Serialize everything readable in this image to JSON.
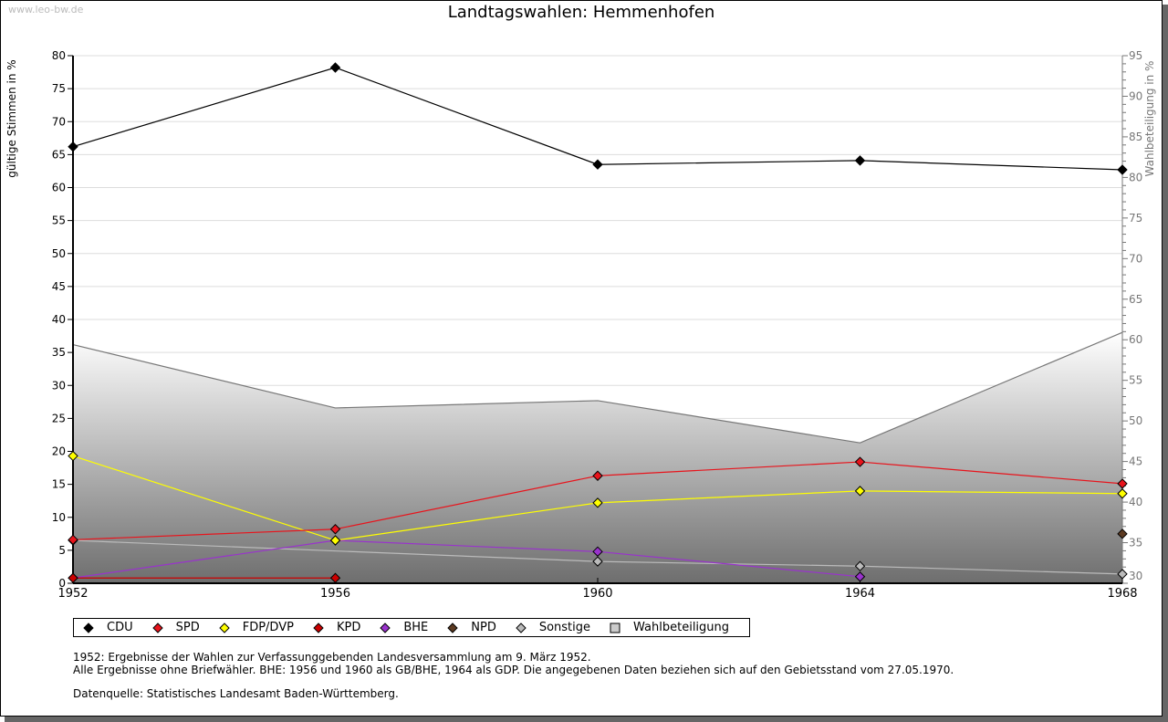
{
  "watermark": "www.leo-bw.de",
  "colors": {
    "CDU": "#000000",
    "SPD": "#e8141c",
    "FDP/DVP": "#ffff00",
    "KPD": "#cc0000",
    "BHE": "#9933cc",
    "NPD": "#5c3a21",
    "Sonstige": "#bbbbbb",
    "Wahlbeteiligung": "#cccccc"
  },
  "chart_data": {
    "type": "line",
    "title": "Landtagswahlen: Hemmenhofen",
    "ylabel": "gültige Stimmen in %",
    "y2label": "Wahlbeteiligung in %",
    "x": [
      1952,
      1956,
      1960,
      1964,
      1968
    ],
    "xticks": [
      "1952",
      "1956",
      "1960",
      "1964",
      "1968"
    ],
    "ylim": [
      0,
      80
    ],
    "yticks": [
      "0",
      "5",
      "10",
      "15",
      "20",
      "25",
      "30",
      "35",
      "40",
      "45",
      "50",
      "55",
      "60",
      "65",
      "70",
      "75",
      "80"
    ],
    "y2lim": [
      30,
      95
    ],
    "y2ticks": [
      "30",
      "35",
      "40",
      "45",
      "50",
      "55",
      "60",
      "65",
      "70",
      "75",
      "80",
      "85",
      "90",
      "95"
    ],
    "grid": true,
    "legend_position": "bottom-left",
    "series": [
      {
        "name": "CDU",
        "axis": "left",
        "values": [
          66.2,
          78.2,
          63.5,
          64.1,
          62.7
        ]
      },
      {
        "name": "SPD",
        "axis": "left",
        "values": [
          6.6,
          8.2,
          16.3,
          18.4,
          15.1
        ]
      },
      {
        "name": "FDP/DVP",
        "axis": "left",
        "values": [
          19.3,
          6.5,
          12.2,
          14.0,
          13.6
        ]
      },
      {
        "name": "KPD",
        "axis": "left",
        "values": [
          0.8,
          0.8,
          null,
          null,
          null
        ]
      },
      {
        "name": "BHE",
        "axis": "left",
        "values": [
          0.8,
          6.5,
          4.8,
          1.0,
          null
        ]
      },
      {
        "name": "NPD",
        "axis": "left",
        "values": [
          null,
          null,
          null,
          null,
          7.5
        ]
      },
      {
        "name": "Sonstige",
        "axis": "left",
        "values": [
          6.5,
          null,
          3.3,
          2.6,
          1.4
        ]
      },
      {
        "name": "Wahlbeteiligung",
        "axis": "right",
        "type": "area",
        "values": [
          59.4,
          51.6,
          52.5,
          47.3,
          60.9
        ]
      }
    ]
  },
  "legend": [
    {
      "label": "CDU",
      "shape": "diamond"
    },
    {
      "label": "SPD",
      "shape": "diamond"
    },
    {
      "label": "FDP/DVP",
      "shape": "diamond"
    },
    {
      "label": "KPD",
      "shape": "diamond"
    },
    {
      "label": "BHE",
      "shape": "diamond"
    },
    {
      "label": "NPD",
      "shape": "diamond"
    },
    {
      "label": "Sonstige",
      "shape": "diamond"
    },
    {
      "label": "Wahlbeteiligung",
      "shape": "square"
    }
  ],
  "notes": {
    "line1": "1952: Ergebnisse der Wahlen zur Verfassunggebenden Landesversammlung am 9. März 1952.",
    "line2": "Alle Ergebnisse ohne Briefwähler. BHE: 1956 und 1960 als GB/BHE, 1964 als GDP. Die angegebenen Daten beziehen sich auf den Gebietsstand vom 27.05.1970.",
    "source": "Datenquelle: Statistisches Landesamt Baden-Württemberg."
  }
}
